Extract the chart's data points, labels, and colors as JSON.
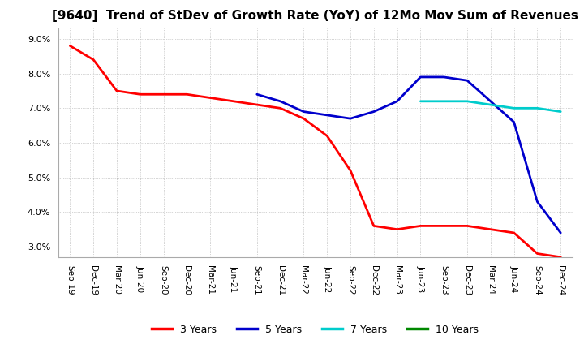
{
  "title": "[9640]  Trend of StDev of Growth Rate (YoY) of 12Mo Mov Sum of Revenues",
  "title_fontsize": 11,
  "ylim": [
    0.027,
    0.093
  ],
  "yticks": [
    0.03,
    0.04,
    0.05,
    0.06,
    0.07,
    0.08,
    0.09
  ],
  "background_color": "#ffffff",
  "grid_color": "#aaaaaa",
  "x_labels": [
    "Sep-19",
    "Dec-19",
    "Mar-20",
    "Jun-20",
    "Sep-20",
    "Dec-20",
    "Mar-21",
    "Jun-21",
    "Sep-21",
    "Dec-21",
    "Mar-22",
    "Jun-22",
    "Sep-22",
    "Dec-22",
    "Mar-23",
    "Jun-23",
    "Sep-23",
    "Dec-23",
    "Mar-24",
    "Jun-24",
    "Sep-24",
    "Dec-24"
  ],
  "series": {
    "3 Years": {
      "color": "#ff0000",
      "data": [
        0.088,
        0.084,
        0.075,
        0.074,
        0.074,
        0.074,
        0.073,
        0.072,
        0.071,
        0.07,
        0.067,
        0.062,
        0.052,
        0.036,
        0.035,
        0.036,
        0.036,
        0.036,
        0.035,
        0.034,
        0.028,
        0.027
      ]
    },
    "5 Years": {
      "color": "#0000cc",
      "data": [
        null,
        null,
        null,
        null,
        null,
        null,
        null,
        null,
        0.074,
        0.072,
        0.069,
        0.068,
        0.067,
        0.069,
        0.072,
        0.079,
        0.079,
        0.078,
        0.072,
        0.066,
        0.043,
        0.034
      ]
    },
    "7 Years": {
      "color": "#00cccc",
      "data": [
        null,
        null,
        null,
        null,
        null,
        null,
        null,
        null,
        null,
        null,
        null,
        null,
        null,
        null,
        null,
        0.072,
        0.072,
        0.072,
        0.071,
        0.07,
        0.07,
        0.069
      ]
    },
    "10 Years": {
      "color": "#008800",
      "data": [
        null,
        null,
        null,
        null,
        null,
        null,
        null,
        null,
        null,
        null,
        null,
        null,
        null,
        null,
        null,
        null,
        null,
        null,
        null,
        null,
        null,
        0.069
      ]
    }
  },
  "legend_labels": [
    "3 Years",
    "5 Years",
    "7 Years",
    "10 Years"
  ],
  "legend_colors": [
    "#ff0000",
    "#0000cc",
    "#00cccc",
    "#008800"
  ]
}
